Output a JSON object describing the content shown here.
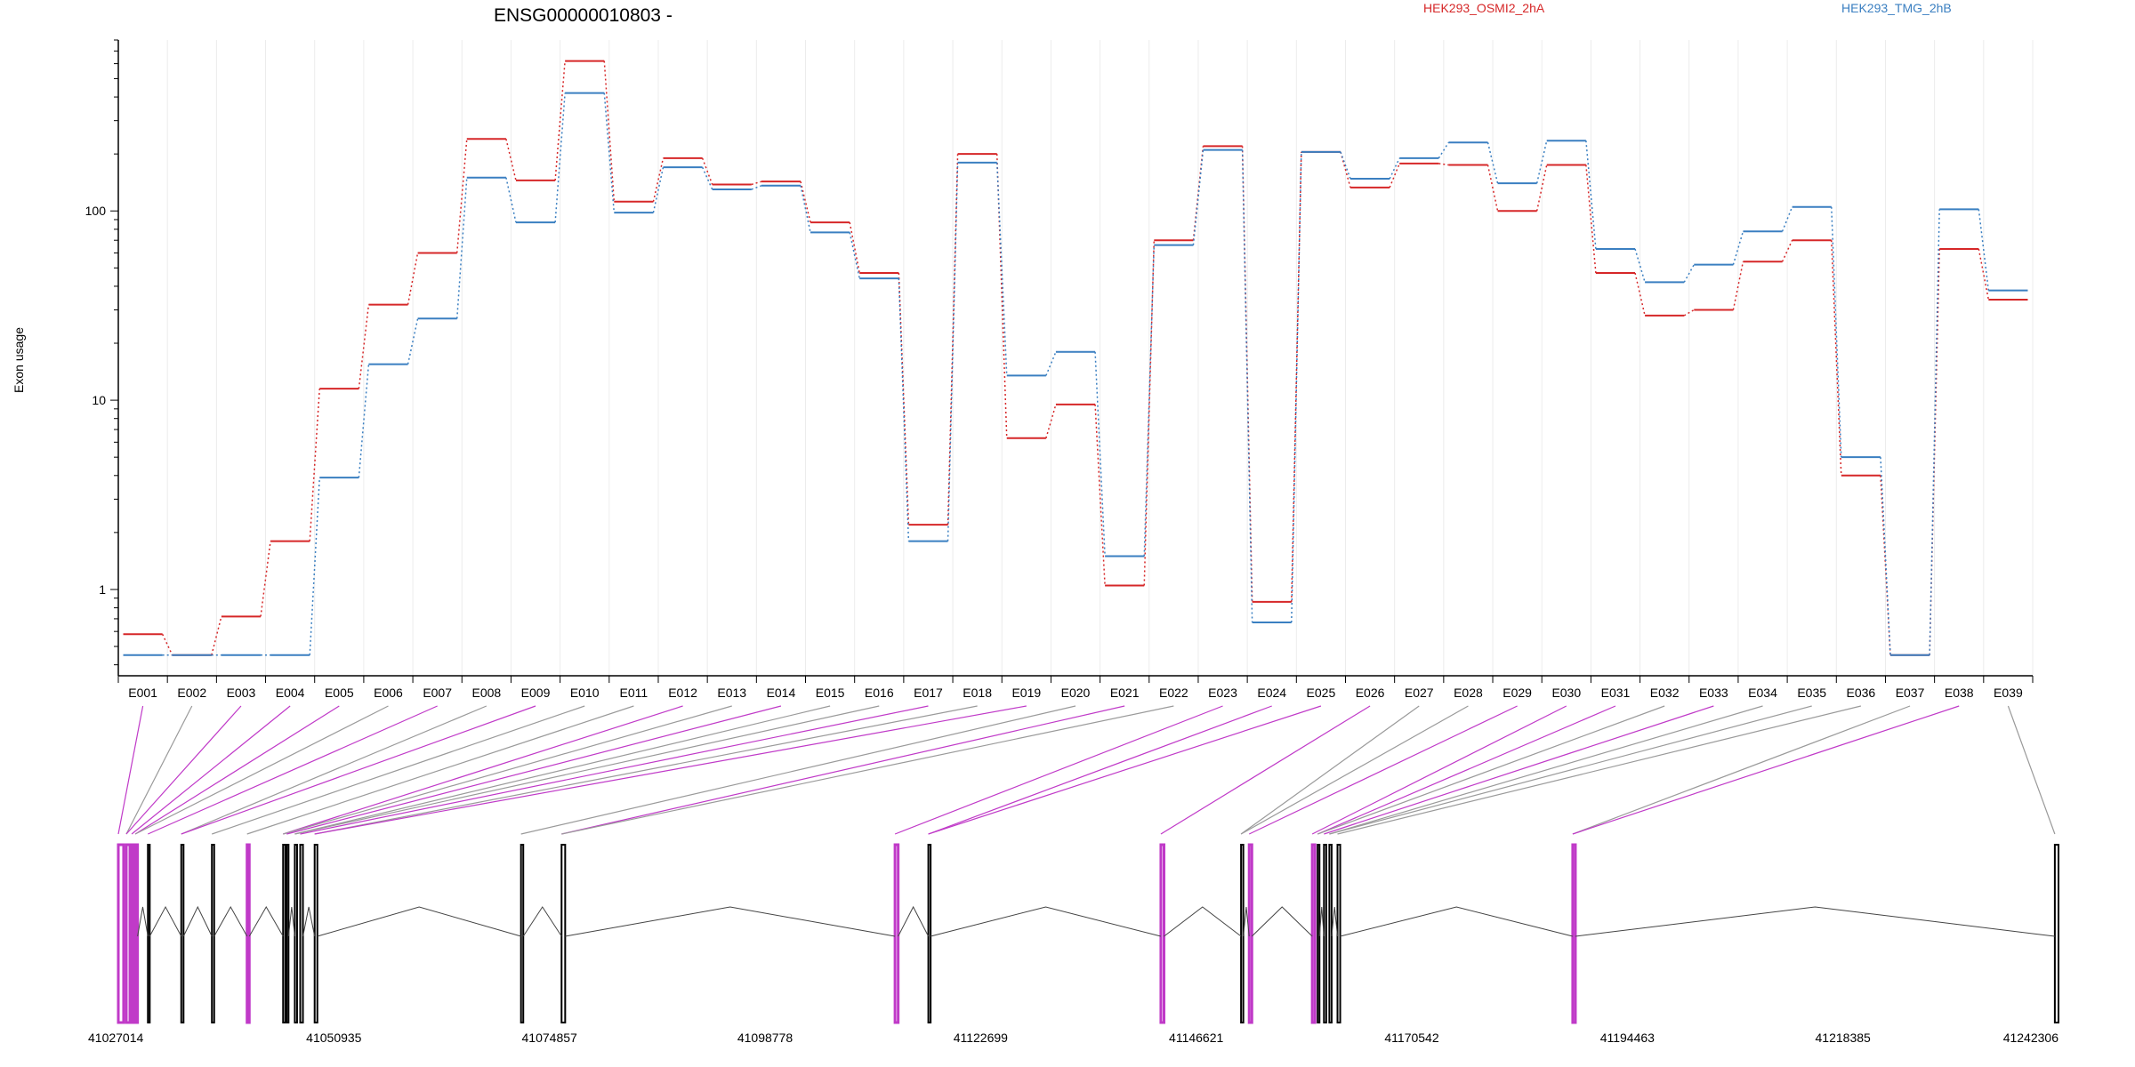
{
  "chart_data": {
    "type": "line",
    "title": "ENSG00000010803 -",
    "ylabel": "Exon usage",
    "yscale": "log",
    "ylim": [
      0.35,
      800
    ],
    "yticks": [
      1,
      10,
      100
    ],
    "ytick_labels": [
      "1",
      "10",
      "100"
    ],
    "categories": [
      "E001",
      "E002",
      "E003",
      "E004",
      "E005",
      "E006",
      "E007",
      "E008",
      "E009",
      "E010",
      "E011",
      "E012",
      "E013",
      "E014",
      "E015",
      "E016",
      "E017",
      "E018",
      "E019",
      "E020",
      "E021",
      "E022",
      "E023",
      "E024",
      "E025",
      "E026",
      "E027",
      "E028",
      "E029",
      "E030",
      "E031",
      "E032",
      "E033",
      "E034",
      "E035",
      "E036",
      "E037",
      "E038",
      "E039"
    ],
    "series": [
      {
        "name": "HEK293_OSMI2_2hA",
        "color": "#d62728",
        "values": [
          0.58,
          0.45,
          0.72,
          1.8,
          11.5,
          32,
          60,
          240,
          145,
          620,
          112,
          190,
          138,
          143,
          87,
          47,
          2.2,
          200,
          6.3,
          9.5,
          1.05,
          70,
          220,
          0.86,
          205,
          133,
          178,
          175,
          100,
          175,
          47,
          28,
          30,
          54,
          70,
          4,
          0.45,
          63,
          34
        ]
      },
      {
        "name": "HEK293_TMG_2hB",
        "color": "#3a7fc1",
        "values": [
          0.45,
          0.45,
          0.45,
          0.45,
          3.9,
          15.5,
          27,
          150,
          87,
          420,
          98,
          170,
          130,
          136,
          77,
          44,
          1.8,
          180,
          13.5,
          18,
          1.5,
          66,
          210,
          0.67,
          205,
          148,
          190,
          230,
          140,
          235,
          63,
          42,
          52,
          78,
          105,
          5,
          0.45,
          102,
          38
        ]
      }
    ],
    "exon_color_flags": [
      "M",
      "G",
      "M",
      "M",
      "M",
      "G",
      "M",
      "G",
      "M",
      "G",
      "G",
      "M",
      "G",
      "M",
      "G",
      "G",
      "M",
      "G",
      "M",
      "G",
      "M",
      "G",
      "M",
      "M",
      "M",
      "M",
      "G",
      "G",
      "M",
      "M",
      "M",
      "G",
      "M",
      "G",
      "G",
      "G",
      "G",
      "M",
      "G"
    ],
    "exon_colors": {
      "M": "#c03ac8",
      "G": "#9a9a9a"
    },
    "genomic_axis": {
      "ticks": [
        41027014,
        41050935,
        41074857,
        41098778,
        41122699,
        41146621,
        41170542,
        41194463,
        41218385,
        41242306
      ],
      "tick_labels": [
        "41027014",
        "41050935",
        "41074857",
        "41098778",
        "41122699",
        "41146621",
        "41170542",
        "41194463",
        "41218385",
        "41242306"
      ],
      "range": [
        41027014,
        41242306
      ]
    },
    "gene_model": {
      "exons": [
        {
          "start": 41027014,
          "end": 41027600,
          "highlight": true
        },
        {
          "start": 41027900,
          "end": 41028300,
          "highlight": true
        },
        {
          "start": 41028500,
          "end": 41028750,
          "highlight": true
        },
        {
          "start": 41028900,
          "end": 41029150,
          "highlight": true
        },
        {
          "start": 41030300,
          "end": 41030500,
          "highlight": false
        },
        {
          "start": 41034000,
          "end": 41034250,
          "highlight": false
        },
        {
          "start": 41037400,
          "end": 41037650,
          "highlight": false
        },
        {
          "start": 41041300,
          "end": 41041550,
          "highlight": true
        },
        {
          "start": 41045300,
          "end": 41045550,
          "highlight": false
        },
        {
          "start": 41045700,
          "end": 41045900,
          "highlight": false
        },
        {
          "start": 41046600,
          "end": 41046850,
          "highlight": false
        },
        {
          "start": 41047200,
          "end": 41047500,
          "highlight": false
        },
        {
          "start": 41048800,
          "end": 41049100,
          "highlight": false
        },
        {
          "start": 41071700,
          "end": 41071950,
          "highlight": false
        },
        {
          "start": 41076200,
          "end": 41076600,
          "highlight": false
        },
        {
          "start": 41113200,
          "end": 41113550,
          "highlight": true
        },
        {
          "start": 41116900,
          "end": 41117150,
          "highlight": false
        },
        {
          "start": 41142700,
          "end": 41143050,
          "highlight": true
        },
        {
          "start": 41151600,
          "end": 41151850,
          "highlight": false
        },
        {
          "start": 41152500,
          "end": 41152800,
          "highlight": true
        },
        {
          "start": 41159500,
          "end": 41159800,
          "highlight": true
        },
        {
          "start": 41160100,
          "end": 41160300,
          "highlight": false
        },
        {
          "start": 41160800,
          "end": 41161050,
          "highlight": false
        },
        {
          "start": 41161400,
          "end": 41161650,
          "highlight": false
        },
        {
          "start": 41162300,
          "end": 41162600,
          "highlight": false
        },
        {
          "start": 41188400,
          "end": 41188700,
          "highlight": true
        },
        {
          "start": 41241900,
          "end": 41242306,
          "highlight": false
        }
      ]
    },
    "legend_placement": "top"
  }
}
